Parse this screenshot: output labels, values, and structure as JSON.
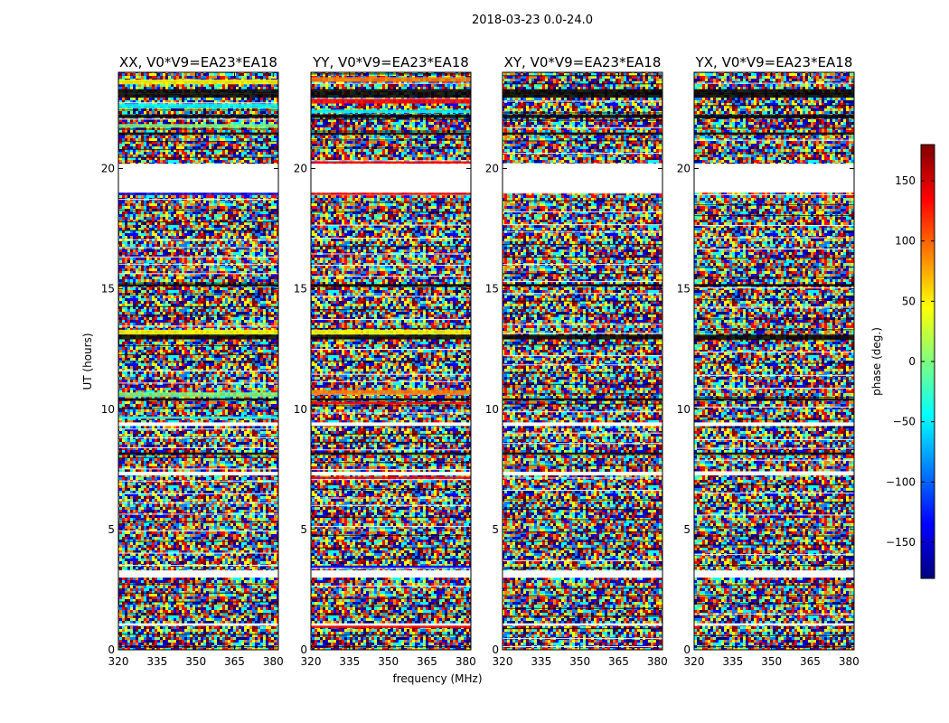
{
  "chart_data": {
    "type": "heatmap",
    "suptitle": "2018-03-23 0.0-24.0",
    "xlabel": "frequency (MHz)",
    "ylabel": "UT (hours)",
    "xlim": [
      320,
      382
    ],
    "ylim": [
      0,
      24
    ],
    "xticks": [
      "320",
      "335",
      "350",
      "365",
      "380"
    ],
    "xtick_values": [
      320,
      335,
      350,
      365,
      380
    ],
    "yticks": [
      "0",
      "5",
      "10",
      "15",
      "20"
    ],
    "ytick_values": [
      0,
      5,
      10,
      15,
      20
    ],
    "colorbar": {
      "label": "phase (deg.)",
      "range": [
        -180,
        180
      ],
      "ticks": [
        "150",
        "100",
        "50",
        "0",
        "−50",
        "−100",
        "−150"
      ],
      "tick_values": [
        150,
        100,
        50,
        0,
        -50,
        -100,
        -150
      ],
      "colormap": "jet",
      "colors": [
        "#00007f",
        "#0000ff",
        "#007fff",
        "#00ffff",
        "#7fff7f",
        "#ffff00",
        "#ff7f00",
        "#ff0000",
        "#7f0000"
      ]
    },
    "panels": [
      {
        "title": "XX, V0*V9=EA23*EA18",
        "polarization": "XX"
      },
      {
        "title": "YY, V0*V9=EA23*EA18",
        "polarization": "YY"
      },
      {
        "title": "XY, V0*V9=EA23*EA18",
        "polarization": "XY"
      },
      {
        "title": "YX, V0*V9=EA23*EA18",
        "polarization": "YX"
      }
    ],
    "gaps_ut_hours": [
      [
        19.0,
        20.2
      ],
      [
        3.0,
        3.3
      ],
      [
        7.25,
        7.4
      ],
      [
        1.0,
        1.1
      ],
      [
        9.3,
        9.45
      ]
    ],
    "dark_bands_ut_hours": [
      [
        22.95,
        23.3
      ],
      [
        22.1,
        22.25
      ],
      [
        21.4,
        21.5
      ],
      [
        15.1,
        15.2
      ],
      [
        12.9,
        13.1
      ],
      [
        10.35,
        10.45
      ],
      [
        8.1,
        8.2
      ]
    ],
    "bright_bands_ut_hours": {
      "XX": [
        [
          23.5,
          23.7,
          "#ffff00"
        ],
        [
          22.5,
          22.7,
          "#00ffff"
        ],
        [
          21.7,
          21.85,
          "#7fff7f"
        ],
        [
          18.9,
          19.0,
          "#0000ff"
        ],
        [
          13.1,
          13.3,
          "#ffff00"
        ],
        [
          10.5,
          10.7,
          "#7fff7f"
        ],
        [
          9.6,
          9.7,
          "#00ffff"
        ]
      ],
      "YY": [
        [
          23.6,
          23.8,
          "#ff7f00"
        ],
        [
          22.7,
          22.9,
          "#ff0000"
        ],
        [
          22.3,
          22.45,
          "#00ffff"
        ],
        [
          20.2,
          20.3,
          "#ff0000"
        ],
        [
          18.9,
          19.0,
          "#ff0000"
        ],
        [
          13.1,
          13.3,
          "#ffff00"
        ],
        [
          10.6,
          10.8,
          "#ff7f00"
        ],
        [
          10.2,
          10.3,
          "#ff0000"
        ],
        [
          7.1,
          7.2,
          "#ff0000"
        ],
        [
          3.4,
          3.5,
          "#0000ff"
        ],
        [
          0.9,
          1.0,
          "#ff0000"
        ]
      ],
      "XY": [],
      "YX": []
    }
  }
}
